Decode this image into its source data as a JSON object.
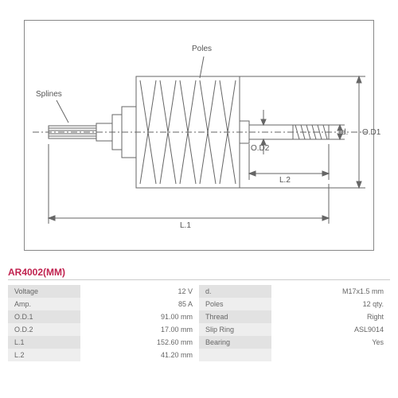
{
  "diagram": {
    "labels": {
      "splines": "Splines",
      "poles": "Poles",
      "od1": "O.D1",
      "od2": "O.D2",
      "d": "d.",
      "l1": "L.1",
      "l2": "L.2"
    },
    "stroke": "#666666",
    "stroke_width": 1
  },
  "part_number": "AR4002(MM)",
  "specs_left": [
    {
      "label": "Voltage",
      "value": "12 V"
    },
    {
      "label": "Amp.",
      "value": "85 A"
    },
    {
      "label": "O.D.1",
      "value": "91.00 mm"
    },
    {
      "label": "O.D.2",
      "value": "17.00 mm"
    },
    {
      "label": "L.1",
      "value": "152.60 mm"
    },
    {
      "label": "L.2",
      "value": "41.20 mm"
    }
  ],
  "specs_right": [
    {
      "label": "d.",
      "value": "M17x1.5 mm"
    },
    {
      "label": "Poles",
      "value": "12 qty."
    },
    {
      "label": "Thread",
      "value": "Right"
    },
    {
      "label": "Slip Ring",
      "value": "ASL9014"
    },
    {
      "label": "Bearing",
      "value": "Yes"
    },
    {
      "label": "",
      "value": ""
    }
  ]
}
